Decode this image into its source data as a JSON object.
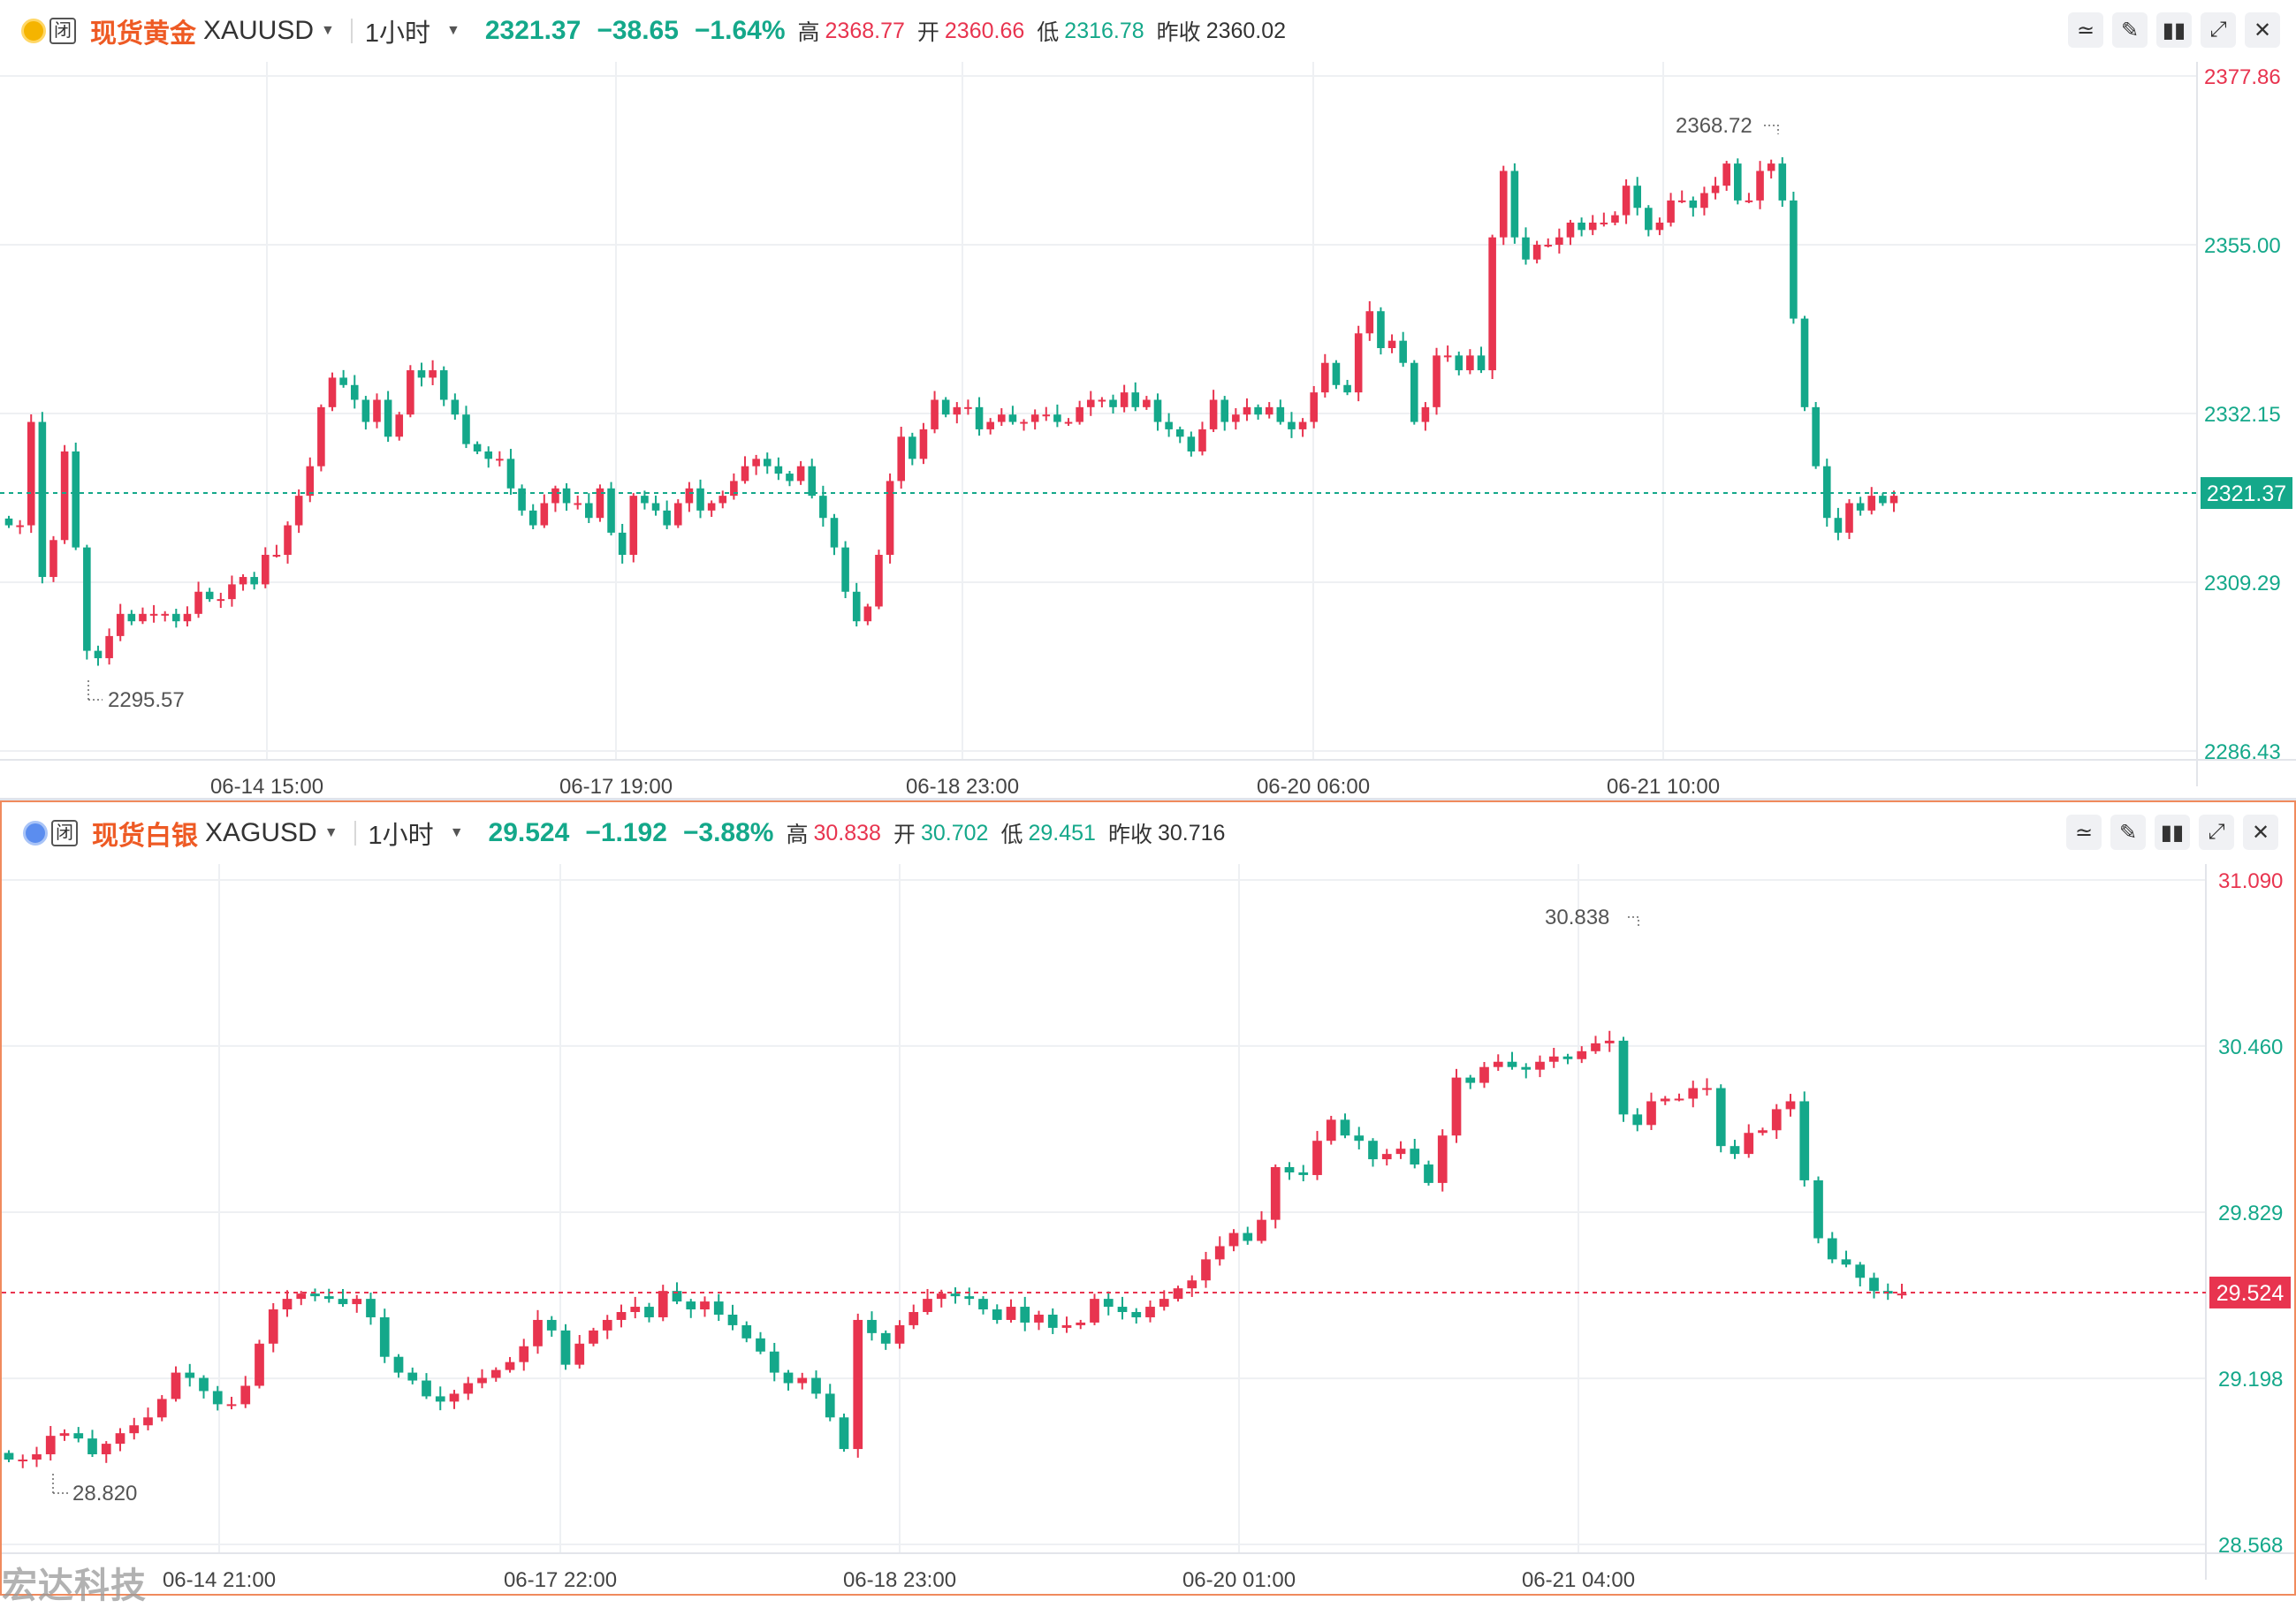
{
  "panels": [
    {
      "id": "gold",
      "name": "现货黄金",
      "symbol": "XAUUSD",
      "interval": "1小时",
      "closed_badge": "闭",
      "last": "2321.37",
      "change": "−38.65",
      "change_pct": "−1.64%",
      "high_label": "高",
      "high": "2368.77",
      "open_label": "开",
      "open": "2360.66",
      "low_label": "低",
      "low": "2316.78",
      "prev_label": "昨收",
      "prev": "2360.02",
      "y_ticks": [
        "2377.86",
        "2355.00",
        "2332.15",
        "2321.37",
        "2309.29",
        "2286.43"
      ],
      "x_ticks": [
        "06-14 15:00",
        "06-17 19:00",
        "06-18 23:00",
        "06-20 06:00",
        "06-21 10:00"
      ],
      "max_label": "2368.72",
      "min_label": "2295.57",
      "colors": {
        "up": "#e8344f",
        "down": "#14a88a",
        "price_line": "#14a88a",
        "badge": "#14a88a"
      }
    },
    {
      "id": "silver",
      "name": "现货白银",
      "symbol": "XAGUSD",
      "interval": "1小时",
      "closed_badge": "闭",
      "last": "29.524",
      "change": "−1.192",
      "change_pct": "−3.88%",
      "high_label": "高",
      "high": "30.838",
      "open_label": "开",
      "open": "30.702",
      "low_label": "低",
      "low": "29.451",
      "prev_label": "昨收",
      "prev": "30.716",
      "y_ticks": [
        "31.090",
        "30.460",
        "29.829",
        "29.524",
        "29.198",
        "28.568"
      ],
      "x_ticks": [
        "06-14 21:00",
        "06-17 22:00",
        "06-18 23:00",
        "06-20 01:00",
        "06-21 04:00"
      ],
      "max_label": "30.838",
      "min_label": "28.820",
      "colors": {
        "up": "#e8344f",
        "down": "#14a88a",
        "price_line": "#e8344f",
        "badge": "#e8344f"
      }
    }
  ],
  "watermark": "宏达科技",
  "chart_data": [
    {
      "type": "candlestick",
      "title": "现货黄金 XAUUSD 1小时",
      "ylim": [
        2286.43,
        2377.86
      ],
      "last_price": 2321.37,
      "series": [
        {
          "name": "XAUUSD",
          "closes": [
            2317,
            2317,
            2331,
            2310,
            2315,
            2327,
            2314,
            2300,
            2299,
            2302,
            2305,
            2304,
            2305,
            2305,
            2305,
            2304,
            2305,
            2308,
            2307,
            2307,
            2309,
            2310,
            2309,
            2313,
            2313,
            2317,
            2321,
            2325,
            2333,
            2337,
            2336,
            2334,
            2331,
            2334,
            2329,
            2332,
            2338,
            2337,
            2338,
            2334,
            2332,
            2328,
            2327,
            2326,
            2326,
            2322,
            2319,
            2317,
            2320,
            2322,
            2320,
            2320,
            2318,
            2322,
            2316,
            2313,
            2321,
            2320,
            2319,
            2317,
            2320,
            2322,
            2319,
            2320,
            2321,
            2323,
            2325,
            2326,
            2325,
            2324,
            2323,
            2325,
            2321,
            2318,
            2314,
            2308,
            2304,
            2306,
            2313,
            2323,
            2329,
            2326,
            2330,
            2334,
            2332,
            2333,
            2333,
            2330,
            2331,
            2332,
            2331,
            2331,
            2332,
            2332,
            2331,
            2331,
            2333,
            2334,
            2334,
            2333,
            2335,
            2333,
            2334,
            2331,
            2330,
            2329,
            2327,
            2330,
            2334,
            2331,
            2332,
            2333,
            2332,
            2333,
            2331,
            2330,
            2331,
            2335,
            2339,
            2336,
            2335,
            2343,
            2346,
            2341,
            2342,
            2339,
            2331,
            2333,
            2340,
            2340,
            2338,
            2340,
            2338,
            2356,
            2365,
            2356,
            2353,
            2355,
            2355,
            2356,
            2358,
            2357,
            2358,
            2358,
            2359,
            2363,
            2360,
            2357,
            2358,
            2361,
            2361,
            2360,
            2362,
            2363,
            2366,
            2361,
            2361,
            2365,
            2366,
            2361,
            2345,
            2333,
            2325,
            2318,
            2316,
            2320,
            2319,
            2321,
            2320,
            2321
          ]
        }
      ]
    },
    {
      "type": "candlestick",
      "title": "现货白银 XAGUSD 1小时",
      "ylim": [
        28.568,
        31.09
      ],
      "last_price": 29.524,
      "series": [
        {
          "name": "XAGUSD",
          "closes": [
            28.89,
            28.89,
            28.91,
            28.98,
            28.99,
            28.97,
            28.91,
            28.95,
            28.99,
            29.02,
            29.05,
            29.12,
            29.22,
            29.2,
            29.15,
            29.1,
            29.1,
            29.17,
            29.33,
            29.46,
            29.5,
            29.52,
            29.51,
            29.5,
            29.48,
            29.5,
            29.43,
            29.28,
            29.22,
            29.19,
            29.13,
            29.11,
            29.14,
            29.18,
            29.2,
            29.23,
            29.26,
            29.32,
            29.42,
            29.38,
            29.25,
            29.33,
            29.38,
            29.42,
            29.45,
            29.47,
            29.43,
            29.53,
            29.49,
            29.46,
            29.49,
            29.44,
            29.4,
            29.35,
            29.3,
            29.22,
            29.18,
            29.2,
            29.14,
            29.05,
            28.93,
            29.42,
            29.37,
            29.33,
            29.4,
            29.45,
            29.5,
            29.52,
            29.51,
            29.5,
            29.46,
            29.42,
            29.47,
            29.41,
            29.44,
            29.39,
            29.4,
            29.41,
            29.5,
            29.47,
            29.45,
            29.43,
            29.47,
            29.5,
            29.54,
            29.57,
            29.65,
            29.7,
            29.75,
            29.72,
            29.8,
            30.0,
            29.98,
            29.97,
            30.1,
            30.18,
            30.12,
            30.1,
            30.03,
            30.05,
            30.07,
            30.01,
            29.94,
            30.12,
            30.34,
            30.32,
            30.38,
            30.4,
            30.38,
            30.37,
            30.4,
            30.42,
            30.41,
            30.44,
            30.47,
            30.48,
            30.2,
            30.16,
            30.25,
            30.26,
            30.26,
            30.3,
            30.3,
            30.08,
            30.05,
            30.13,
            30.14,
            30.22,
            30.25,
            29.95,
            29.73,
            29.65,
            29.63,
            29.58,
            29.53,
            29.52,
            29.52
          ]
        }
      ]
    }
  ]
}
